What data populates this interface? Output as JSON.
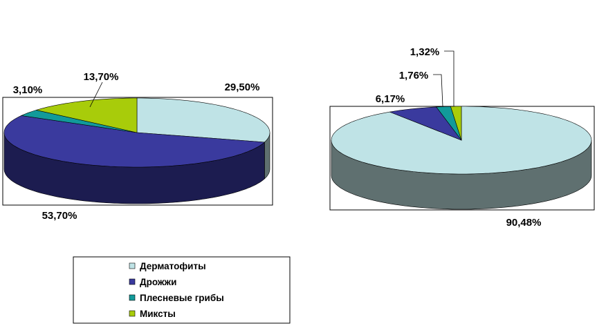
{
  "chart_data": [
    {
      "type": "pie",
      "categories": [
        "Дерматофиты",
        "Дрожжи",
        "Плесневые грибы",
        "Миксты"
      ],
      "values": [
        29.5,
        53.7,
        3.1,
        13.7
      ],
      "data_labels": [
        "29,50%",
        "53,70%",
        "3,10%",
        "13,70%"
      ]
    },
    {
      "type": "pie",
      "categories": [
        "Дерматофиты",
        "Дрожжи",
        "Плесневые грибы",
        "Миксты"
      ],
      "values": [
        90.48,
        6.17,
        1.76,
        1.32
      ],
      "data_labels": [
        "90,48%",
        "6,17%",
        "1,76%",
        "1,32%"
      ]
    }
  ],
  "legend": {
    "placement": "bottom",
    "items": [
      {
        "label": "Дерматофиты",
        "color": "#bfe3e6"
      },
      {
        "label": "Дрожжи",
        "color": "#3a3a9e"
      },
      {
        "label": "Плесневые грибы",
        "color": "#129a9a"
      },
      {
        "label": "Миксты",
        "color": "#a8cc0a"
      }
    ]
  },
  "colors": {
    "top": [
      "#bfe3e6",
      "#3a3a9e",
      "#129a9a",
      "#a8cc0a"
    ],
    "side": [
      "#5f7070",
      "#1c1c50",
      "#0a4d4d",
      "#54660a"
    ]
  }
}
